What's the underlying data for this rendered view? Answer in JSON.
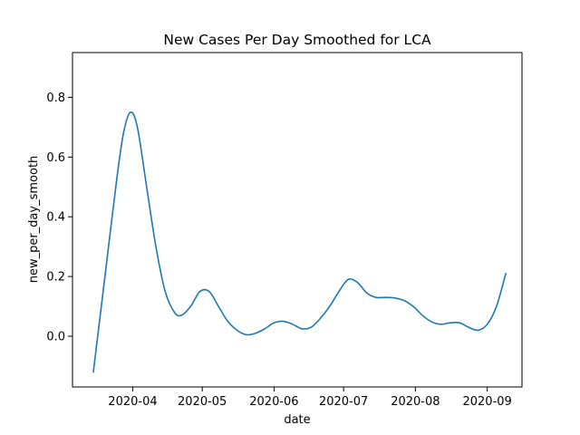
{
  "chart_data": {
    "type": "line",
    "title": "New Cases Per Day Smoothed for LCA",
    "xlabel": "date",
    "ylabel": "new_per_day_smooth",
    "x_type": "date",
    "xlim": [
      "2020-03-06",
      "2020-09-16"
    ],
    "ylim": [
      -0.17,
      0.95
    ],
    "grid": false,
    "legend": "none",
    "x_ticks": [
      "2020-04-01",
      "2020-05-01",
      "2020-06-01",
      "2020-07-01",
      "2020-08-01",
      "2020-09-01"
    ],
    "x_tick_labels": [
      "2020-04",
      "2020-05",
      "2020-06",
      "2020-07",
      "2020-08",
      "2020-09"
    ],
    "y_ticks": [
      0.0,
      0.2,
      0.4,
      0.6,
      0.8
    ],
    "y_tick_labels": [
      "0.0",
      "0.2",
      "0.4",
      "0.6",
      "0.8"
    ],
    "line_color": "#1f77b4",
    "series": [
      {
        "x": [
          "2020-03-15",
          "2020-03-20",
          "2020-03-25",
          "2020-03-28",
          "2020-03-31",
          "2020-04-03",
          "2020-04-07",
          "2020-04-11",
          "2020-04-15",
          "2020-04-19",
          "2020-04-22",
          "2020-04-26",
          "2020-04-30",
          "2020-05-04",
          "2020-05-08",
          "2020-05-12",
          "2020-05-16",
          "2020-05-20",
          "2020-05-24",
          "2020-05-28",
          "2020-06-01",
          "2020-06-05",
          "2020-06-09",
          "2020-06-13",
          "2020-06-17",
          "2020-06-21",
          "2020-06-25",
          "2020-06-29",
          "2020-07-03",
          "2020-07-07",
          "2020-07-11",
          "2020-07-15",
          "2020-07-19",
          "2020-07-23",
          "2020-07-27",
          "2020-07-31",
          "2020-08-04",
          "2020-08-08",
          "2020-08-12",
          "2020-08-16",
          "2020-08-20",
          "2020-08-24",
          "2020-08-28",
          "2020-09-01",
          "2020-09-05",
          "2020-09-09"
        ],
        "y": [
          -0.12,
          0.2,
          0.52,
          0.68,
          0.75,
          0.7,
          0.5,
          0.3,
          0.15,
          0.08,
          0.07,
          0.1,
          0.15,
          0.15,
          0.1,
          0.05,
          0.02,
          0.005,
          0.01,
          0.025,
          0.045,
          0.05,
          0.04,
          0.025,
          0.03,
          0.06,
          0.1,
          0.15,
          0.19,
          0.18,
          0.145,
          0.13,
          0.13,
          0.128,
          0.12,
          0.1,
          0.07,
          0.048,
          0.04,
          0.045,
          0.045,
          0.03,
          0.02,
          0.04,
          0.1,
          0.21
        ]
      }
    ]
  }
}
